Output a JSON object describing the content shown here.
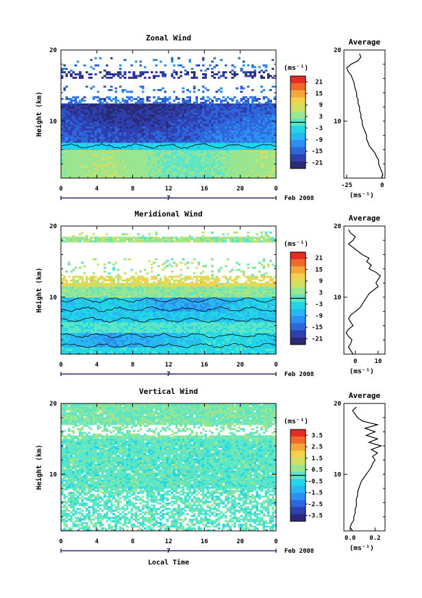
{
  "chart_data": [
    {
      "type": "heatmap",
      "title": "Zonal Wind",
      "xlabel": "",
      "ylabel": "Height (km)",
      "xlim": [
        0,
        24
      ],
      "ylim": [
        2,
        20
      ],
      "x_ticks": [
        "0",
        "4",
        "8",
        "12",
        "16",
        "20",
        "0"
      ],
      "y_ticks": [
        "10",
        "20"
      ],
      "date_marker": "7",
      "date_label": "Feb 2008",
      "colorbar": {
        "unit": "(ms⁻¹)",
        "ticks": [
          "21",
          "15",
          "9",
          "3",
          "-3",
          "-9",
          "-15",
          "-21"
        ],
        "range": [
          -24,
          24
        ]
      },
      "profile": {
        "title": "Average",
        "xlabel": "(ms⁻¹)",
        "x_ticks": [
          "-25",
          "0"
        ],
        "y_ticks": [
          "10",
          "20"
        ],
        "xlim": [
          -27,
          2
        ],
        "points": [
          {
            "h": 2.0,
            "v": -0.5
          },
          {
            "h": 2.5,
            "v": 0.5
          },
          {
            "h": 3.0,
            "v": -0.5
          },
          {
            "h": 3.5,
            "v": -1.5
          },
          {
            "h": 4.0,
            "v": -2.5
          },
          {
            "h": 4.5,
            "v": -2.5
          },
          {
            "h": 5.0,
            "v": -4
          },
          {
            "h": 5.5,
            "v": -5
          },
          {
            "h": 6.0,
            "v": -7
          },
          {
            "h": 6.5,
            "v": -9
          },
          {
            "h": 7.0,
            "v": -10
          },
          {
            "h": 7.5,
            "v": -11
          },
          {
            "h": 8.0,
            "v": -11
          },
          {
            "h": 8.5,
            "v": -12
          },
          {
            "h": 9.0,
            "v": -13
          },
          {
            "h": 9.5,
            "v": -14
          },
          {
            "h": 10.0,
            "v": -14
          },
          {
            "h": 10.5,
            "v": -15
          },
          {
            "h": 11.0,
            "v": -15
          },
          {
            "h": 11.5,
            "v": -16
          },
          {
            "h": 12.0,
            "v": -16
          },
          {
            "h": 12.5,
            "v": -17
          },
          {
            "h": 13.0,
            "v": -17
          },
          {
            "h": 13.5,
            "v": -18
          },
          {
            "h": 14.0,
            "v": -18
          },
          {
            "h": 14.5,
            "v": -19
          },
          {
            "h": 15.0,
            "v": -19.5
          },
          {
            "h": 15.5,
            "v": -20
          },
          {
            "h": 16.0,
            "v": -21
          },
          {
            "h": 16.5,
            "v": -22
          },
          {
            "h": 17.0,
            "v": -24
          },
          {
            "h": 17.5,
            "v": -25
          },
          {
            "h": 18.0,
            "v": -22
          },
          {
            "h": 18.5,
            "v": -17
          },
          {
            "h": 19.0,
            "v": -15
          },
          {
            "h": 19.5,
            "v": -16
          }
        ]
      }
    },
    {
      "type": "heatmap",
      "title": "Meridional Wind",
      "xlabel": "",
      "ylabel": "Height (km)",
      "xlim": [
        0,
        24
      ],
      "ylim": [
        2,
        20
      ],
      "x_ticks": [
        "0",
        "4",
        "8",
        "12",
        "16",
        "20",
        "0"
      ],
      "y_ticks": [
        "10",
        "20"
      ],
      "date_marker": "7",
      "date_label": "Feb 2008",
      "colorbar": {
        "unit": "(ms⁻¹)",
        "ticks": [
          "21",
          "15",
          "9",
          "3",
          "-3",
          "-9",
          "-15",
          "-21"
        ],
        "range": [
          -24,
          24
        ]
      },
      "profile": {
        "title": "Average",
        "xlabel": "(ms⁻¹)",
        "x_ticks": [
          "0",
          "10"
        ],
        "y_ticks": [
          "10",
          "20"
        ],
        "xlim": [
          -5,
          13
        ],
        "points": [
          {
            "h": 2.0,
            "v": -1
          },
          {
            "h": 2.5,
            "v": -2
          },
          {
            "h": 3.0,
            "v": -3
          },
          {
            "h": 3.5,
            "v": -2
          },
          {
            "h": 4.0,
            "v": -1.5
          },
          {
            "h": 4.5,
            "v": -3
          },
          {
            "h": 5.0,
            "v": -4
          },
          {
            "h": 5.5,
            "v": -3
          },
          {
            "h": 6.0,
            "v": -1
          },
          {
            "h": 6.5,
            "v": -2
          },
          {
            "h": 7.0,
            "v": -3
          },
          {
            "h": 7.5,
            "v": -2
          },
          {
            "h": 8.0,
            "v": 0
          },
          {
            "h": 8.5,
            "v": 2
          },
          {
            "h": 9.0,
            "v": 3
          },
          {
            "h": 9.5,
            "v": 4
          },
          {
            "h": 10.0,
            "v": 5
          },
          {
            "h": 10.5,
            "v": 6
          },
          {
            "h": 11.0,
            "v": 8
          },
          {
            "h": 11.5,
            "v": 10
          },
          {
            "h": 12.0,
            "v": 9
          },
          {
            "h": 12.5,
            "v": 10
          },
          {
            "h": 13.0,
            "v": 11
          },
          {
            "h": 13.5,
            "v": 9
          },
          {
            "h": 14.0,
            "v": 6
          },
          {
            "h": 14.5,
            "v": 7
          },
          {
            "h": 15.0,
            "v": 5
          },
          {
            "h": 15.5,
            "v": 6
          },
          {
            "h": 16.0,
            "v": 3
          },
          {
            "h": 16.5,
            "v": 1
          },
          {
            "h": 17.0,
            "v": -1
          },
          {
            "h": 17.5,
            "v": -3
          },
          {
            "h": 18.0,
            "v": -1
          },
          {
            "h": 18.5,
            "v": 0
          },
          {
            "h": 19.0,
            "v": -2
          },
          {
            "h": 19.5,
            "v": -3
          }
        ]
      }
    },
    {
      "type": "heatmap",
      "title": "Vertical Wind",
      "xlabel": "Local Time",
      "ylabel": "Height (km)",
      "xlim": [
        0,
        24
      ],
      "ylim": [
        2,
        20
      ],
      "x_ticks": [
        "0",
        "4",
        "8",
        "12",
        "16",
        "20",
        "0"
      ],
      "y_ticks": [
        "10",
        "20"
      ],
      "date_marker": "7",
      "date_label": "Feb 2008",
      "colorbar": {
        "unit": "(ms⁻¹)",
        "ticks": [
          "3.5",
          "2.5",
          "1.5",
          "0.5",
          "-0.5",
          "-1.5",
          "-2.5",
          "-3.5"
        ],
        "range": [
          -4,
          4
        ]
      },
      "profile": {
        "title": "Average",
        "xlabel": "(ms⁻¹)",
        "x_ticks": [
          "0.0",
          "0.2"
        ],
        "y_ticks": [
          "10",
          "20"
        ],
        "xlim": [
          -0.05,
          0.28
        ],
        "points": [
          {
            "h": 2.0,
            "v": 0.02
          },
          {
            "h": 2.5,
            "v": 0.0
          },
          {
            "h": 3.0,
            "v": 0.01
          },
          {
            "h": 3.5,
            "v": 0.03
          },
          {
            "h": 4.0,
            "v": 0.03
          },
          {
            "h": 4.5,
            "v": 0.04
          },
          {
            "h": 5.0,
            "v": 0.04
          },
          {
            "h": 5.5,
            "v": 0.05
          },
          {
            "h": 6.0,
            "v": 0.05
          },
          {
            "h": 6.5,
            "v": 0.05
          },
          {
            "h": 7.0,
            "v": 0.06
          },
          {
            "h": 7.5,
            "v": 0.06
          },
          {
            "h": 8.0,
            "v": 0.07
          },
          {
            "h": 8.5,
            "v": 0.08
          },
          {
            "h": 9.0,
            "v": 0.09
          },
          {
            "h": 9.5,
            "v": 0.11
          },
          {
            "h": 10.0,
            "v": 0.13
          },
          {
            "h": 10.5,
            "v": 0.15
          },
          {
            "h": 11.0,
            "v": 0.17
          },
          {
            "h": 11.5,
            "v": 0.18
          },
          {
            "h": 12.0,
            "v": 0.2
          },
          {
            "h": 12.5,
            "v": 0.18
          },
          {
            "h": 13.0,
            "v": 0.22
          },
          {
            "h": 13.5,
            "v": 0.17
          },
          {
            "h": 14.0,
            "v": 0.25
          },
          {
            "h": 14.5,
            "v": 0.15
          },
          {
            "h": 15.0,
            "v": 0.22
          },
          {
            "h": 15.5,
            "v": 0.13
          },
          {
            "h": 16.0,
            "v": 0.2
          },
          {
            "h": 16.5,
            "v": 0.12
          },
          {
            "h": 17.0,
            "v": 0.22
          },
          {
            "h": 17.5,
            "v": 0.1
          },
          {
            "h": 18.0,
            "v": 0.06
          },
          {
            "h": 18.5,
            "v": 0.04
          },
          {
            "h": 19.0,
            "v": 0.02
          },
          {
            "h": 19.5,
            "v": 0.05
          }
        ]
      }
    }
  ]
}
